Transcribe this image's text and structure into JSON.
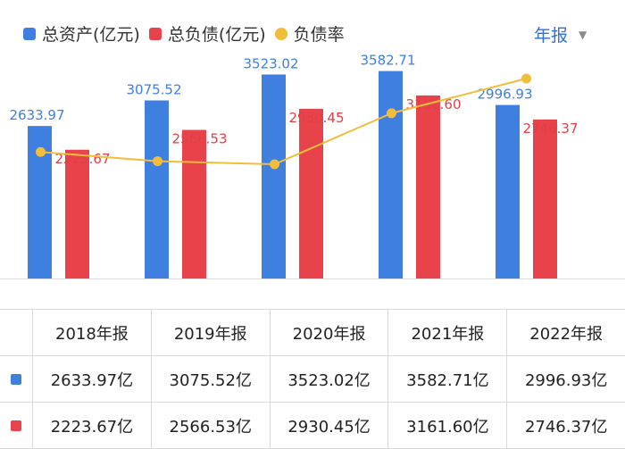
{
  "legend": {
    "assets": "总资产(亿元)",
    "liabilities": "总负债(亿元)",
    "ratio": "负债率"
  },
  "period_selector": {
    "label": "年报",
    "icon": "caret-down-icon"
  },
  "colors": {
    "assets": "#3f7fe0",
    "liabilities": "#e8424a",
    "ratio": "#f3bd3c",
    "period_text": "#2f6fd6"
  },
  "chart_data": {
    "type": "bar",
    "categories": [
      "2018年报",
      "2019年报",
      "2020年报",
      "2021年报",
      "2022年报"
    ],
    "series": [
      {
        "name": "总资产(亿元)",
        "values": [
          2633.97,
          3075.52,
          3523.02,
          3582.71,
          2996.93
        ]
      },
      {
        "name": "总负债(亿元)",
        "values": [
          2223.67,
          2566.53,
          2930.45,
          3161.6,
          2746.37
        ]
      }
    ],
    "labels": {
      "assets": [
        "2633.97",
        "3075.52",
        "3523.02",
        "3582.71",
        "2996.93"
      ],
      "liabilities": [
        "2223.67",
        "2566.53",
        "2930.45",
        "3161.60",
        "2746.37"
      ]
    },
    "line": {
      "name": "负债率",
      "values": [
        84.4,
        83.5,
        83.2,
        88.2,
        91.6
      ]
    },
    "ylim": [
      0,
      3700
    ],
    "line_ylim": [
      72,
      93
    ],
    "title": "",
    "xlabel": "",
    "ylabel": ""
  },
  "table": {
    "headers": [
      "2018年报",
      "2019年报",
      "2020年报",
      "2021年报",
      "2022年报"
    ],
    "rows": [
      {
        "marker": "assets",
        "cells": [
          "2633.97亿",
          "3075.52亿",
          "3523.02亿",
          "3582.71亿",
          "2996.93亿"
        ]
      },
      {
        "marker": "liabilities",
        "cells": [
          "2223.67亿",
          "2566.53亿",
          "2930.45亿",
          "3161.60亿",
          "2746.37亿"
        ]
      }
    ]
  }
}
